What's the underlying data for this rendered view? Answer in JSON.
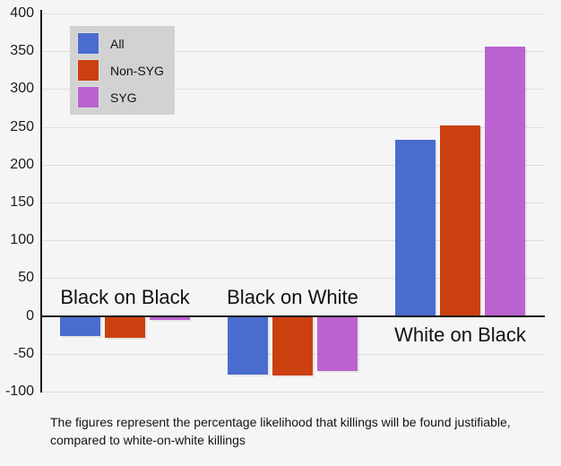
{
  "chart_data": {
    "type": "bar",
    "title": "",
    "categories": [
      "Black on Black",
      "Black on White",
      "White on Black"
    ],
    "series": [
      {
        "name": "All",
        "color": "#4a6cce",
        "values": [
          -26,
          -77,
          233
        ]
      },
      {
        "name": "Non-SYG",
        "color": "#cc4010",
        "values": [
          -29,
          -79,
          252
        ]
      },
      {
        "name": "SYG",
        "color": "#ba62d0",
        "values": [
          -5,
          -73,
          356
        ]
      }
    ],
    "ylim": [
      -100,
      400
    ],
    "yticks": [
      400,
      350,
      300,
      250,
      200,
      150,
      100,
      50,
      0,
      -50,
      -100
    ],
    "grid": true,
    "legend_position": "top-left",
    "colors": {
      "background": "#f5f5f5",
      "legend_background": "#d2d2d2",
      "gridline": "#dedede",
      "axis": "#1b1b1b"
    },
    "caption": {
      "line1": "The figures represent the percentage likelihood that killings will be found justifiable,",
      "line2": "compared to white-on-white killings"
    }
  }
}
